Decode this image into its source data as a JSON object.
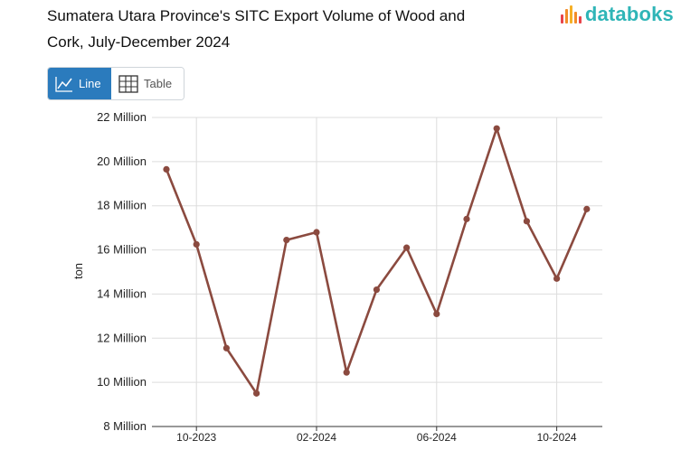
{
  "title_line1": "Sumatera Utara Province's SITC Export Volume of Wood and",
  "title_line2": "Cork, July-December 2024",
  "brand": {
    "name": "databoks",
    "colors": [
      "#e8434a",
      "#f28c28",
      "#f6b026",
      "#2fb5b7"
    ]
  },
  "toggle": {
    "line_label": "Line",
    "table_label": "Table",
    "line_icon": "line-chart-icon",
    "table_icon": "grid-table-icon",
    "selected": "Line",
    "accent": "#2b7bbd"
  },
  "chart_data": {
    "type": "line",
    "ylabel": "ton",
    "ylim": [
      8000000,
      22000000
    ],
    "yticks": [
      {
        "value": 8000000,
        "label": "8 Million"
      },
      {
        "value": 10000000,
        "label": "10 Million"
      },
      {
        "value": 12000000,
        "label": "12 Million"
      },
      {
        "value": 14000000,
        "label": "14 Million"
      },
      {
        "value": 16000000,
        "label": "16 Million"
      },
      {
        "value": 18000000,
        "label": "18 Million"
      },
      {
        "value": 20000000,
        "label": "20 Million"
      },
      {
        "value": 22000000,
        "label": "22 Million"
      }
    ],
    "xticks": [
      "10-2023",
      "02-2024",
      "06-2024",
      "10-2024"
    ],
    "x": [
      "2023-09",
      "2023-10",
      "2023-11",
      "2023-12",
      "2024-01",
      "2024-02",
      "2024-03",
      "2024-04",
      "2024-05",
      "2024-06",
      "2024-07",
      "2024-08",
      "2024-09",
      "2024-10",
      "2024-11"
    ],
    "series": [
      {
        "color": "#8b4a3f",
        "values": [
          19650000,
          16250000,
          11550000,
          9500000,
          16450000,
          16800000,
          10450000,
          14200000,
          16100000,
          13100000,
          17400000,
          21500000,
          17300000,
          14700000,
          17850000
        ]
      }
    ],
    "grid": true
  }
}
